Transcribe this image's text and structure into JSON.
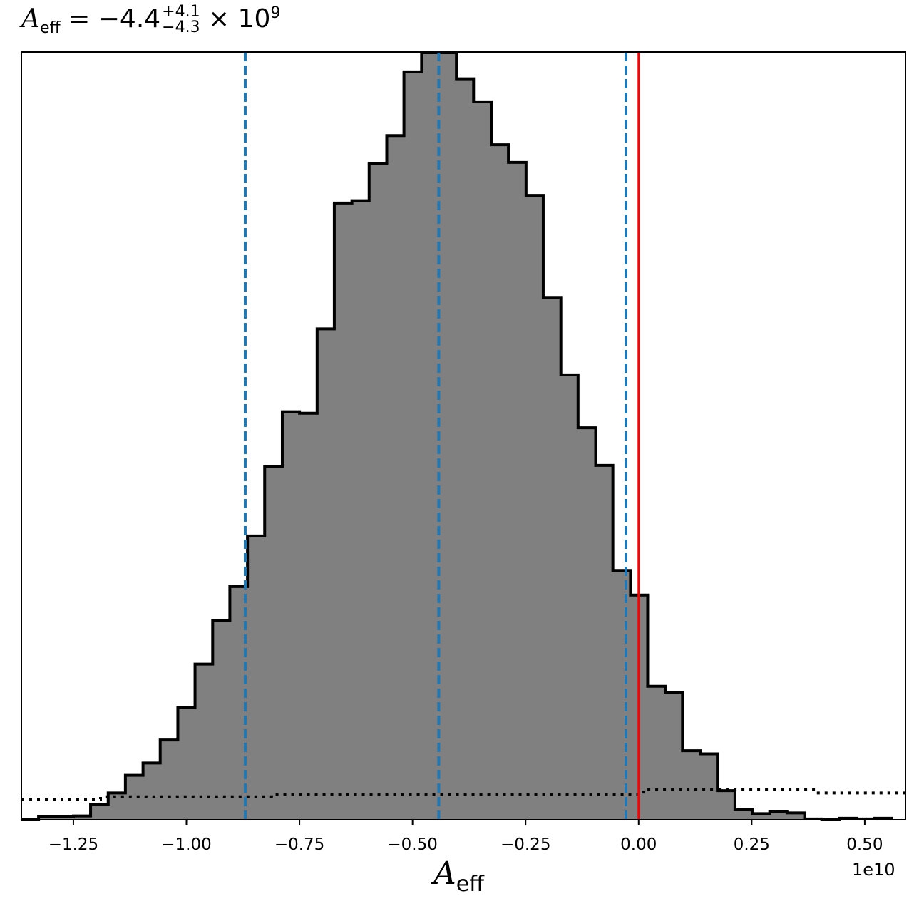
{
  "chart_data": {
    "type": "histogram",
    "title": {
      "symbol": "A",
      "symbol_sub": "eff",
      "text": " = −4.4",
      "upper": "+4.1",
      "lower": "−4.3",
      "suffix": " × 10",
      "exponent": "9"
    },
    "xlabel": {
      "symbol": "A",
      "sub": "eff"
    },
    "x_offset_label": "1e10",
    "x_scale": 10000000000.0,
    "xlim": [
      -1.365,
      0.59
    ],
    "ylim": [
      0,
      1.0
    ],
    "x_ticks": [
      {
        "value": -1.25,
        "label": "−1.25"
      },
      {
        "value": -1.0,
        "label": "−1.00"
      },
      {
        "value": -0.75,
        "label": "−0.75"
      },
      {
        "value": -0.5,
        "label": "−0.50"
      },
      {
        "value": -0.25,
        "label": "−0.25"
      },
      {
        "value": 0.0,
        "label": "0.00"
      },
      {
        "value": 0.25,
        "label": "0.25"
      },
      {
        "value": 0.5,
        "label": "0.50"
      }
    ],
    "bin_edges": [
      -1.365,
      -1.327,
      -1.289,
      -1.25,
      -1.212,
      -1.173,
      -1.135,
      -1.096,
      -1.058,
      -1.019,
      -0.981,
      -0.942,
      -0.904,
      -0.865,
      -0.827,
      -0.788,
      -0.75,
      -0.711,
      -0.673,
      -0.634,
      -0.596,
      -0.557,
      -0.519,
      -0.48,
      -0.442,
      -0.403,
      -0.365,
      -0.326,
      -0.288,
      -0.249,
      -0.211,
      -0.172,
      -0.134,
      -0.095,
      -0.057,
      -0.018,
      0.02,
      0.059,
      0.097,
      0.136,
      0.174,
      0.213,
      0.251,
      0.29,
      0.328,
      0.367,
      0.405,
      0.444,
      0.482,
      0.521,
      0.559
    ],
    "counts": [
      0.0,
      0.004,
      0.004,
      0.005,
      0.02,
      0.035,
      0.058,
      0.074,
      0.104,
      0.146,
      0.203,
      0.26,
      0.304,
      0.37,
      0.461,
      0.532,
      0.53,
      0.64,
      0.804,
      0.807,
      0.856,
      0.892,
      0.975,
      1.0,
      1.0,
      0.966,
      0.936,
      0.88,
      0.857,
      0.814,
      0.681,
      0.58,
      0.511,
      0.462,
      0.325,
      0.293,
      0.174,
      0.166,
      0.09,
      0.086,
      0.038,
      0.013,
      0.008,
      0.011,
      0.009,
      0.001,
      0.0,
      0.002,
      0.001,
      0.002
    ],
    "histogram_fill": "#808080",
    "histogram_edge": "#000000",
    "quantile_lines": [
      {
        "value": -0.87,
        "style": "dashed",
        "color": "#1f77b4"
      },
      {
        "value": -0.442,
        "style": "dashed",
        "color": "#1f77b4"
      },
      {
        "value": -0.028,
        "style": "dashed",
        "color": "#1f77b4"
      }
    ],
    "true_value_line": {
      "value": 0.0,
      "color": "#ff0000"
    },
    "prior_curve": {
      "style": "dotted",
      "color": "#000000",
      "x": [
        -1.365,
        -1.19,
        -1.19,
        -0.805,
        -0.805,
        0.01,
        0.01,
        0.39,
        0.39,
        0.59
      ],
      "y": [
        0.027,
        0.027,
        0.03,
        0.03,
        0.033,
        0.033,
        0.039,
        0.039,
        0.035,
        0.035
      ]
    }
  }
}
